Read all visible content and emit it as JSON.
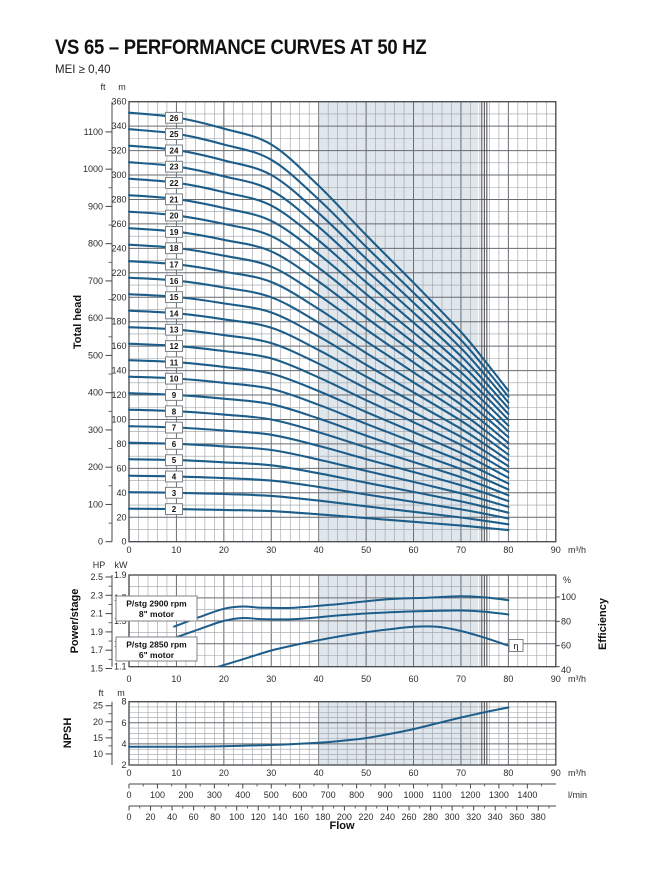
{
  "title": "VS 65 – PERFORMANCE CURVES AT 50 HZ",
  "subtitle": "MEI ≥ 0,40",
  "labels": {
    "total_head": "Total head",
    "power_stage": "Power/stage",
    "efficiency": "Efficiency",
    "npsh": "NPSH",
    "flow": "Flow"
  },
  "units": {
    "ft": "ft",
    "m": "m",
    "hp": "HP",
    "kw": "kW",
    "pct": "%",
    "m3h": "m³/h",
    "lmin": "l/min"
  },
  "colors": {
    "curve": "#1d5d8a",
    "grid_minor": "#9aa0a5",
    "grid_major": "#676c71",
    "border": "#43474b",
    "shade": "#dfe6ec",
    "text": "#2b2b2b",
    "box_border": "#7d8287"
  },
  "operating_region": {
    "from_m3h": 40.2,
    "to_m3h": 73.6,
    "boundary_lines_m3h": [
      74.4,
      74.93,
      75.46
    ]
  },
  "annotations": {
    "motor_2900": [
      "P/stg 2900 rpm",
      "8\" motor"
    ],
    "motor_2850": [
      "P/stg 2850 rpm",
      "6\" motor"
    ],
    "eta": "η"
  },
  "flow_scales": {
    "m3h_ticks": [
      0,
      10,
      20,
      30,
      40,
      50,
      60,
      70,
      80,
      90
    ],
    "lmin_ticks": [
      0,
      100,
      200,
      300,
      400,
      500,
      600,
      700,
      800,
      900,
      1000,
      1100,
      1200,
      1300,
      1400
    ],
    "gpm_ticks": [
      0,
      20,
      40,
      60,
      80,
      100,
      120,
      140,
      160,
      180,
      200,
      220,
      240,
      260,
      280,
      300,
      320,
      340,
      360,
      380
    ]
  },
  "chart_data": [
    {
      "type": "line",
      "name": "total_head",
      "title": "Total head",
      "ylabel": "Total head (m / ft)",
      "xlabel": "Flow (m³/h)",
      "xlim": [
        0,
        90
      ],
      "ylim_m": [
        0,
        360
      ],
      "x_ticks": [
        0,
        10,
        20,
        30,
        40,
        50,
        60,
        70,
        80,
        90
      ],
      "m_tick_step": 20,
      "m_grid_step": 10,
      "ft_ticks": [
        0,
        100,
        200,
        300,
        400,
        500,
        600,
        700,
        800,
        900,
        1000,
        1100
      ],
      "stages": [
        2,
        3,
        4,
        5,
        6,
        7,
        8,
        9,
        10,
        11,
        12,
        13,
        14,
        15,
        16,
        17,
        18,
        19,
        20,
        21,
        22,
        23,
        24,
        25,
        26
      ],
      "x_m3h": [
        0,
        10,
        20,
        30,
        40,
        50,
        60,
        70,
        75,
        80
      ],
      "head_per_stage_m": [
        13.5,
        13.35,
        13.0,
        12.5,
        11.2,
        9.65,
        8.15,
        6.6,
        5.7,
        4.75
      ],
      "note": "each curve = stages × head_per_stage_m at same flow"
    },
    {
      "type": "line",
      "name": "power_per_stage_and_efficiency",
      "title": "Power/stage and Efficiency",
      "xlim": [
        0,
        90
      ],
      "ylim_kw": [
        1.1,
        1.9
      ],
      "kw_ticks": [
        "1.9",
        "1.7",
        "1.5",
        "1.3",
        "1.1"
      ],
      "hp_ticks": [
        "2.5",
        "2.3",
        "2.1",
        "1.9",
        "1.7",
        "1.5"
      ],
      "eff_ticks_pct": [
        100,
        80,
        60,
        40
      ],
      "x_ticks": [
        0,
        10,
        20,
        30,
        40,
        50,
        60,
        70,
        80,
        90
      ],
      "series": [
        {
          "name": "P/stg 2900 rpm 8\" motor",
          "x": [
            9.5,
            15,
            20,
            24,
            28,
            35,
            45,
            55,
            62,
            70,
            75,
            80
          ],
          "kw": [
            1.45,
            1.535,
            1.605,
            1.625,
            1.615,
            1.615,
            1.65,
            1.69,
            1.7,
            1.715,
            1.705,
            1.68
          ]
        },
        {
          "name": "P/stg 2850 rpm 6\" motor",
          "x": [
            9.5,
            15,
            20,
            24,
            28,
            35,
            45,
            55,
            62,
            70,
            75,
            80
          ],
          "kw": [
            1.35,
            1.43,
            1.5,
            1.525,
            1.515,
            1.515,
            1.55,
            1.575,
            1.585,
            1.59,
            1.58,
            1.555
          ]
        }
      ],
      "efficiency": {
        "name": "η",
        "x": [
          17.5,
          20,
          25,
          30,
          35,
          40,
          45,
          50,
          55,
          60,
          65,
          70,
          75,
          80
        ],
        "pct": [
          41,
          44,
          50,
          56,
          60.5,
          64.5,
          68,
          71,
          73.5,
          75.5,
          75.5,
          72,
          66.5,
          60
        ]
      }
    },
    {
      "type": "line",
      "name": "npsh",
      "title": "NPSH",
      "xlim": [
        0,
        90
      ],
      "ylim_m": [
        2,
        8
      ],
      "m_ticks": [
        8,
        6,
        4,
        2
      ],
      "ft_ticks": [
        25,
        20,
        15,
        10
      ],
      "x_ticks": [
        0,
        10,
        20,
        30,
        40,
        50,
        60,
        70,
        80,
        90
      ],
      "x": [
        0,
        10,
        20,
        30,
        40,
        45,
        50,
        55,
        60,
        65,
        70,
        75,
        80
      ],
      "npsh_m": [
        3.73,
        3.73,
        3.78,
        3.9,
        4.1,
        4.3,
        4.55,
        4.95,
        5.4,
        5.95,
        6.5,
        7.0,
        7.45
      ]
    }
  ]
}
